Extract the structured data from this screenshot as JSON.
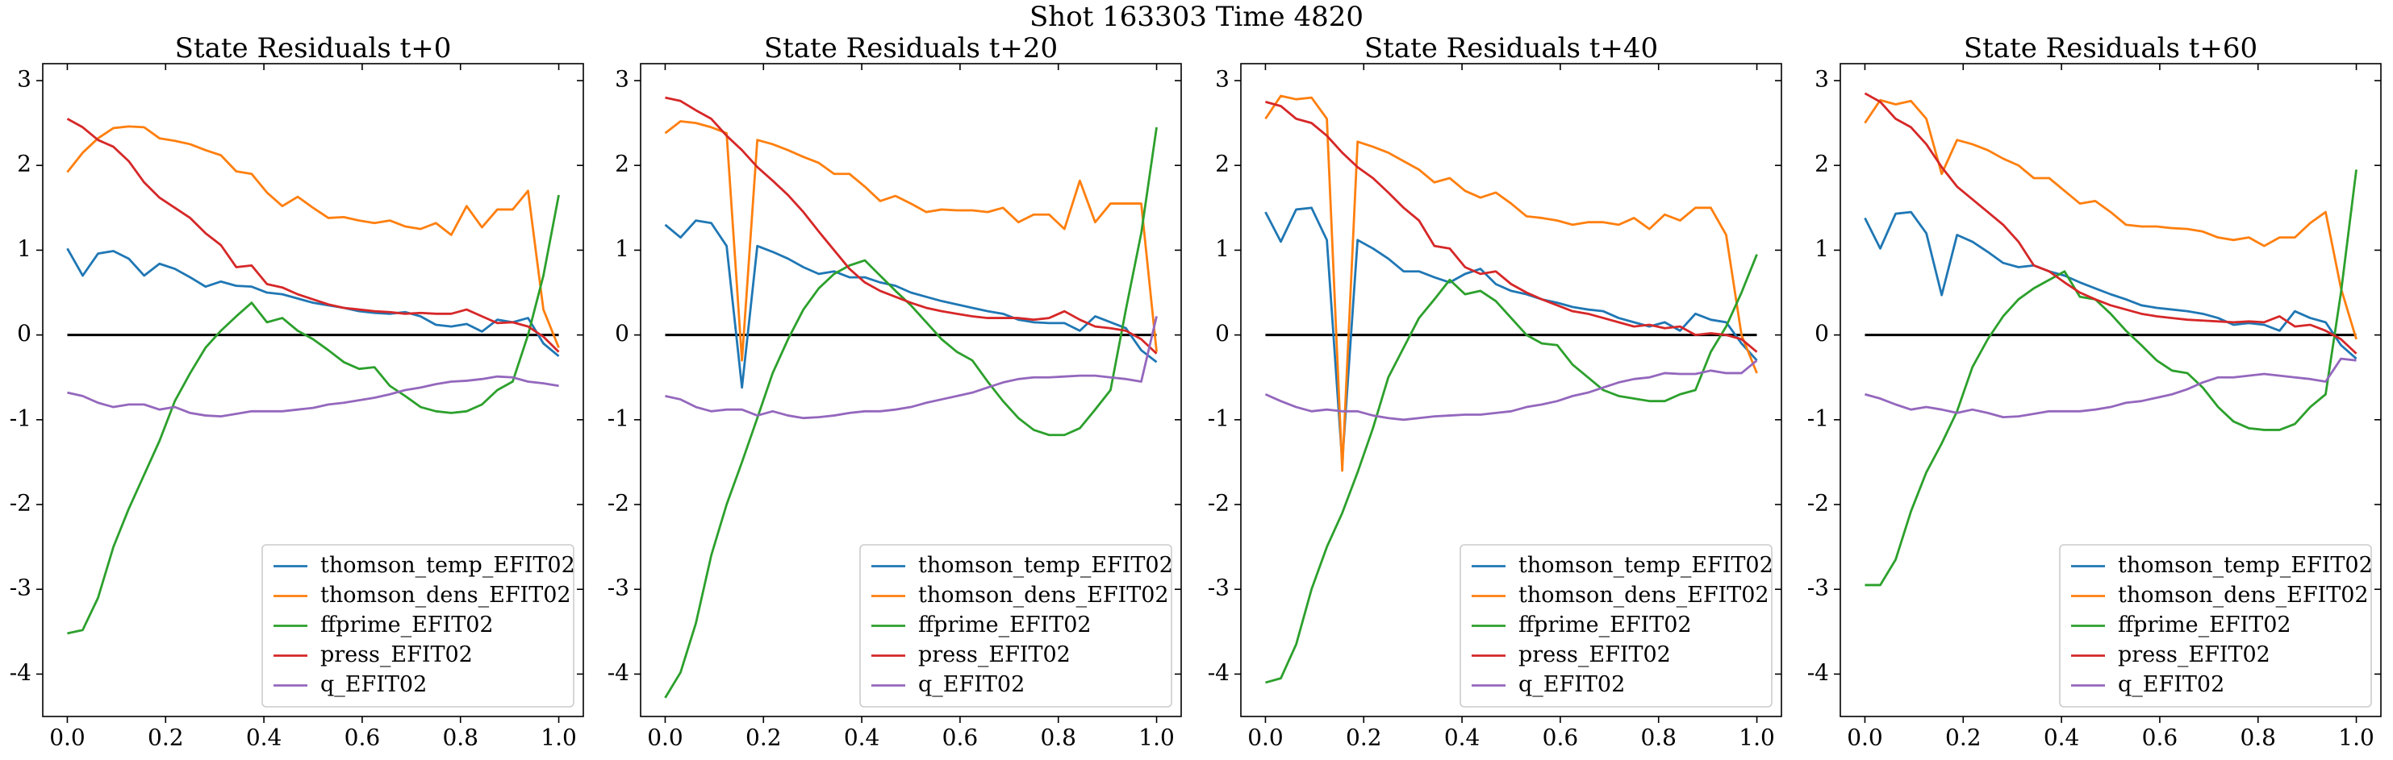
{
  "title": "Shot 163303   Time 4820",
  "chart_data": [
    {
      "type": "line",
      "title": "State Residuals t+0",
      "xlim": [
        -0.05,
        1.05
      ],
      "ylim": [
        -4.5,
        3.2
      ],
      "xticks": [
        {
          "value": 0,
          "label": "0.0"
        },
        0.2,
        0.4,
        0.6,
        0.8,
        {
          "value": 1,
          "label": "1.0"
        }
      ],
      "yticks": [
        -4,
        -3,
        -2,
        -1,
        0,
        1,
        2,
        3
      ],
      "hline": 0,
      "legend": "lower right",
      "x": [
        0,
        0.03125,
        0.0625,
        0.09375,
        0.125,
        0.15625,
        0.1875,
        0.21875,
        0.25,
        0.28125,
        0.3125,
        0.34375,
        0.375,
        0.40625,
        0.4375,
        0.46875,
        0.5,
        0.53125,
        0.5625,
        0.59375,
        0.625,
        0.65625,
        0.6875,
        0.71875,
        0.75,
        0.78125,
        0.8125,
        0.84375,
        0.875,
        0.90625,
        0.9375,
        0.96875,
        1
      ],
      "series": [
        {
          "name": "thomson_temp_EFIT02",
          "color": "#1f77b4",
          "values": [
            1.02,
            0.7,
            0.96,
            0.99,
            0.9,
            0.7,
            0.84,
            0.78,
            0.68,
            0.57,
            0.63,
            0.58,
            0.57,
            0.5,
            0.48,
            0.43,
            0.38,
            0.35,
            0.32,
            0.28,
            0.26,
            0.25,
            0.27,
            0.22,
            0.12,
            0.1,
            0.13,
            0.04,
            0.18,
            0.15,
            0.2,
            -0.1,
            -0.25
          ]
        },
        {
          "name": "thomson_dens_EFIT02",
          "color": "#ff7f0e",
          "values": [
            1.92,
            2.15,
            2.32,
            2.44,
            2.46,
            2.45,
            2.32,
            2.29,
            2.25,
            2.18,
            2.12,
            1.93,
            1.9,
            1.68,
            1.52,
            1.63,
            1.5,
            1.38,
            1.39,
            1.35,
            1.32,
            1.35,
            1.28,
            1.25,
            1.32,
            1.18,
            1.52,
            1.27,
            1.48,
            1.48,
            1.7,
            0.3,
            -0.15
          ]
        },
        {
          "name": "ffprime_EFIT02",
          "color": "#2ca02c",
          "values": [
            -3.52,
            -3.48,
            -3.1,
            -2.5,
            -2.05,
            -1.65,
            -1.25,
            -0.78,
            -0.45,
            -0.15,
            0.05,
            0.22,
            0.38,
            0.15,
            0.2,
            0.05,
            -0.05,
            -0.18,
            -0.32,
            -0.4,
            -0.38,
            -0.6,
            -0.72,
            -0.85,
            -0.9,
            -0.92,
            -0.9,
            -0.82,
            -0.65,
            -0.55,
            0.0,
            0.7,
            1.65
          ]
        },
        {
          "name": "press_EFIT02",
          "color": "#d62728",
          "values": [
            2.55,
            2.45,
            2.3,
            2.22,
            2.05,
            1.8,
            1.62,
            1.5,
            1.38,
            1.2,
            1.06,
            0.8,
            0.82,
            0.6,
            0.56,
            0.48,
            0.42,
            0.36,
            0.32,
            0.3,
            0.28,
            0.27,
            0.25,
            0.26,
            0.25,
            0.25,
            0.3,
            0.22,
            0.14,
            0.15,
            0.1,
            -0.02,
            -0.2
          ]
        },
        {
          "name": "q_EFIT02",
          "color": "#9467bd",
          "values": [
            -0.68,
            -0.72,
            -0.8,
            -0.85,
            -0.82,
            -0.82,
            -0.88,
            -0.85,
            -0.92,
            -0.95,
            -0.96,
            -0.93,
            -0.9,
            -0.9,
            -0.9,
            -0.88,
            -0.86,
            -0.82,
            -0.8,
            -0.77,
            -0.74,
            -0.7,
            -0.65,
            -0.62,
            -0.58,
            -0.55,
            -0.54,
            -0.52,
            -0.49,
            -0.5,
            -0.55,
            -0.57,
            -0.6
          ]
        }
      ]
    },
    {
      "type": "line",
      "title": "State Residuals t+20",
      "xlim": [
        -0.05,
        1.05
      ],
      "ylim": [
        -4.5,
        3.2
      ],
      "xticks": [
        {
          "value": 0,
          "label": "0.0"
        },
        0.2,
        0.4,
        0.6,
        0.8,
        {
          "value": 1,
          "label": "1.0"
        }
      ],
      "yticks": [
        -4,
        -3,
        -2,
        -1,
        0,
        1,
        2,
        3
      ],
      "hline": 0,
      "legend": "lower right",
      "x": [
        0,
        0.03125,
        0.0625,
        0.09375,
        0.125,
        0.15625,
        0.1875,
        0.21875,
        0.25,
        0.28125,
        0.3125,
        0.34375,
        0.375,
        0.40625,
        0.4375,
        0.46875,
        0.5,
        0.53125,
        0.5625,
        0.59375,
        0.625,
        0.65625,
        0.6875,
        0.71875,
        0.75,
        0.78125,
        0.8125,
        0.84375,
        0.875,
        0.90625,
        0.9375,
        0.96875,
        1
      ],
      "series": [
        {
          "name": "thomson_temp_EFIT02",
          "color": "#1f77b4",
          "values": [
            1.3,
            1.15,
            1.35,
            1.32,
            1.05,
            -0.62,
            1.05,
            0.98,
            0.9,
            0.8,
            0.72,
            0.75,
            0.68,
            0.68,
            0.62,
            0.58,
            0.5,
            0.45,
            0.4,
            0.36,
            0.32,
            0.28,
            0.25,
            0.18,
            0.15,
            0.14,
            0.14,
            0.05,
            0.22,
            0.15,
            0.08,
            -0.18,
            -0.32
          ]
        },
        {
          "name": "thomson_dens_EFIT02",
          "color": "#ff7f0e",
          "values": [
            2.38,
            2.52,
            2.5,
            2.45,
            2.38,
            -0.3,
            2.3,
            2.25,
            2.18,
            2.1,
            2.03,
            1.9,
            1.9,
            1.75,
            1.58,
            1.64,
            1.55,
            1.45,
            1.48,
            1.47,
            1.47,
            1.45,
            1.5,
            1.33,
            1.42,
            1.42,
            1.25,
            1.82,
            1.33,
            1.55,
            1.55,
            1.55,
            -0.2
          ]
        },
        {
          "name": "ffprime_EFIT02",
          "color": "#2ca02c",
          "values": [
            -4.28,
            -3.98,
            -3.4,
            -2.6,
            -2.0,
            -1.5,
            -0.98,
            -0.45,
            -0.05,
            0.3,
            0.55,
            0.72,
            0.82,
            0.88,
            0.7,
            0.52,
            0.35,
            0.15,
            -0.05,
            -0.2,
            -0.3,
            -0.55,
            -0.78,
            -0.98,
            -1.12,
            -1.18,
            -1.18,
            -1.1,
            -0.88,
            -0.65,
            0.3,
            1.2,
            2.45
          ]
        },
        {
          "name": "press_EFIT02",
          "color": "#d62728",
          "values": [
            2.8,
            2.76,
            2.65,
            2.55,
            2.35,
            2.18,
            1.98,
            1.82,
            1.65,
            1.45,
            1.22,
            1.0,
            0.78,
            0.62,
            0.52,
            0.45,
            0.38,
            0.32,
            0.28,
            0.25,
            0.22,
            0.2,
            0.2,
            0.2,
            0.18,
            0.2,
            0.28,
            0.18,
            0.1,
            0.08,
            0.05,
            -0.05,
            -0.22
          ]
        },
        {
          "name": "q_EFIT02",
          "color": "#9467bd",
          "values": [
            -0.72,
            -0.76,
            -0.85,
            -0.9,
            -0.88,
            -0.88,
            -0.95,
            -0.9,
            -0.95,
            -0.98,
            -0.97,
            -0.95,
            -0.92,
            -0.9,
            -0.9,
            -0.88,
            -0.85,
            -0.8,
            -0.76,
            -0.72,
            -0.68,
            -0.62,
            -0.56,
            -0.52,
            -0.5,
            -0.5,
            -0.49,
            -0.48,
            -0.48,
            -0.5,
            -0.52,
            -0.55,
            0.22
          ]
        }
      ]
    },
    {
      "type": "line",
      "title": "State Residuals t+40",
      "xlim": [
        -0.05,
        1.05
      ],
      "ylim": [
        -4.5,
        3.2
      ],
      "xticks": [
        {
          "value": 0,
          "label": "0.0"
        },
        0.2,
        0.4,
        0.6,
        0.8,
        {
          "value": 1,
          "label": "1.0"
        }
      ],
      "yticks": [
        -4,
        -3,
        -2,
        -1,
        0,
        1,
        2,
        3
      ],
      "hline": 0,
      "legend": "lower right",
      "x": [
        0,
        0.03125,
        0.0625,
        0.09375,
        0.125,
        0.15625,
        0.1875,
        0.21875,
        0.25,
        0.28125,
        0.3125,
        0.34375,
        0.375,
        0.40625,
        0.4375,
        0.46875,
        0.5,
        0.53125,
        0.5625,
        0.59375,
        0.625,
        0.65625,
        0.6875,
        0.71875,
        0.75,
        0.78125,
        0.8125,
        0.84375,
        0.875,
        0.90625,
        0.9375,
        0.96875,
        1
      ],
      "series": [
        {
          "name": "thomson_temp_EFIT02",
          "color": "#1f77b4",
          "values": [
            1.45,
            1.1,
            1.48,
            1.5,
            1.12,
            -1.5,
            1.12,
            1.02,
            0.9,
            0.75,
            0.75,
            0.68,
            0.62,
            0.72,
            0.78,
            0.6,
            0.52,
            0.48,
            0.42,
            0.38,
            0.33,
            0.3,
            0.28,
            0.2,
            0.15,
            0.1,
            0.15,
            0.05,
            0.25,
            0.18,
            0.15,
            -0.1,
            -0.3
          ]
        },
        {
          "name": "thomson_dens_EFIT02",
          "color": "#ff7f0e",
          "values": [
            2.55,
            2.82,
            2.78,
            2.8,
            2.55,
            -1.6,
            2.28,
            2.22,
            2.15,
            2.05,
            1.95,
            1.8,
            1.85,
            1.7,
            1.62,
            1.68,
            1.55,
            1.4,
            1.38,
            1.35,
            1.3,
            1.33,
            1.33,
            1.3,
            1.38,
            1.25,
            1.42,
            1.35,
            1.5,
            1.5,
            1.18,
            0.0,
            -0.45
          ]
        },
        {
          "name": "ffprime_EFIT02",
          "color": "#2ca02c",
          "values": [
            -4.1,
            -4.05,
            -3.65,
            -3.0,
            -2.5,
            -2.1,
            -1.62,
            -1.1,
            -0.5,
            -0.15,
            0.2,
            0.42,
            0.65,
            0.48,
            0.52,
            0.4,
            0.2,
            0.0,
            -0.1,
            -0.12,
            -0.35,
            -0.5,
            -0.65,
            -0.72,
            -0.75,
            -0.78,
            -0.78,
            -0.7,
            -0.65,
            -0.2,
            0.1,
            0.5,
            0.95
          ]
        },
        {
          "name": "press_EFIT02",
          "color": "#d62728",
          "values": [
            2.75,
            2.7,
            2.55,
            2.5,
            2.35,
            2.15,
            1.98,
            1.85,
            1.68,
            1.5,
            1.35,
            1.05,
            1.02,
            0.8,
            0.72,
            0.75,
            0.6,
            0.5,
            0.42,
            0.35,
            0.28,
            0.25,
            0.2,
            0.15,
            0.1,
            0.12,
            0.08,
            0.1,
            0.0,
            0.02,
            0.0,
            -0.05,
            -0.2
          ]
        },
        {
          "name": "q_EFIT02",
          "color": "#9467bd",
          "values": [
            -0.7,
            -0.78,
            -0.85,
            -0.9,
            -0.88,
            -0.9,
            -0.9,
            -0.95,
            -0.98,
            -1.0,
            -0.98,
            -0.96,
            -0.95,
            -0.94,
            -0.94,
            -0.92,
            -0.9,
            -0.85,
            -0.82,
            -0.78,
            -0.72,
            -0.68,
            -0.62,
            -0.56,
            -0.52,
            -0.5,
            -0.45,
            -0.46,
            -0.46,
            -0.42,
            -0.45,
            -0.45,
            -0.3
          ]
        }
      ]
    },
    {
      "type": "line",
      "title": "State Residuals t+60",
      "xlim": [
        -0.05,
        1.05
      ],
      "ylim": [
        -4.5,
        3.2
      ],
      "xticks": [
        {
          "value": 0,
          "label": "0.0"
        },
        0.2,
        0.4,
        0.6,
        0.8,
        {
          "value": 1,
          "label": "1.0"
        }
      ],
      "yticks": [
        -4,
        -3,
        -2,
        -1,
        0,
        1,
        2,
        3
      ],
      "hline": 0,
      "legend": "lower right",
      "x": [
        0,
        0.03125,
        0.0625,
        0.09375,
        0.125,
        0.15625,
        0.1875,
        0.21875,
        0.25,
        0.28125,
        0.3125,
        0.34375,
        0.375,
        0.40625,
        0.4375,
        0.46875,
        0.5,
        0.53125,
        0.5625,
        0.59375,
        0.625,
        0.65625,
        0.6875,
        0.71875,
        0.75,
        0.78125,
        0.8125,
        0.84375,
        0.875,
        0.90625,
        0.9375,
        0.96875,
        1
      ],
      "series": [
        {
          "name": "thomson_temp_EFIT02",
          "color": "#1f77b4",
          "values": [
            1.38,
            1.02,
            1.43,
            1.45,
            1.2,
            0.47,
            1.18,
            1.1,
            0.98,
            0.85,
            0.8,
            0.82,
            0.75,
            0.7,
            0.62,
            0.55,
            0.48,
            0.42,
            0.35,
            0.32,
            0.3,
            0.28,
            0.25,
            0.2,
            0.12,
            0.14,
            0.12,
            0.05,
            0.28,
            0.2,
            0.15,
            -0.12,
            -0.28
          ]
        },
        {
          "name": "thomson_dens_EFIT02",
          "color": "#ff7f0e",
          "values": [
            2.5,
            2.77,
            2.72,
            2.76,
            2.55,
            1.9,
            2.3,
            2.25,
            2.18,
            2.08,
            2.0,
            1.85,
            1.85,
            1.7,
            1.55,
            1.58,
            1.45,
            1.3,
            1.28,
            1.28,
            1.26,
            1.25,
            1.22,
            1.15,
            1.12,
            1.15,
            1.05,
            1.15,
            1.15,
            1.32,
            1.45,
            0.55,
            -0.05
          ]
        },
        {
          "name": "ffprime_EFIT02",
          "color": "#2ca02c",
          "values": [
            -2.95,
            -2.95,
            -2.65,
            -2.08,
            -1.62,
            -1.28,
            -0.9,
            -0.38,
            -0.05,
            0.22,
            0.42,
            0.55,
            0.65,
            0.75,
            0.45,
            0.42,
            0.25,
            0.05,
            -0.12,
            -0.3,
            -0.42,
            -0.45,
            -0.62,
            -0.85,
            -1.02,
            -1.1,
            -1.12,
            -1.12,
            -1.05,
            -0.85,
            -0.7,
            0.5,
            1.95
          ]
        },
        {
          "name": "press_EFIT02",
          "color": "#d62728",
          "values": [
            2.85,
            2.75,
            2.55,
            2.45,
            2.25,
            1.98,
            1.75,
            1.6,
            1.45,
            1.3,
            1.1,
            0.82,
            0.75,
            0.62,
            0.5,
            0.42,
            0.35,
            0.3,
            0.25,
            0.22,
            0.2,
            0.18,
            0.17,
            0.16,
            0.15,
            0.16,
            0.15,
            0.22,
            0.1,
            0.12,
            0.05,
            -0.05,
            -0.22
          ]
        },
        {
          "name": "q_EFIT02",
          "color": "#9467bd",
          "values": [
            -0.7,
            -0.75,
            -0.82,
            -0.88,
            -0.85,
            -0.88,
            -0.92,
            -0.88,
            -0.92,
            -0.97,
            -0.96,
            -0.93,
            -0.9,
            -0.9,
            -0.9,
            -0.88,
            -0.85,
            -0.8,
            -0.78,
            -0.74,
            -0.7,
            -0.64,
            -0.56,
            -0.5,
            -0.5,
            -0.48,
            -0.46,
            -0.48,
            -0.5,
            -0.52,
            -0.55,
            -0.28,
            -0.3
          ]
        }
      ]
    }
  ]
}
